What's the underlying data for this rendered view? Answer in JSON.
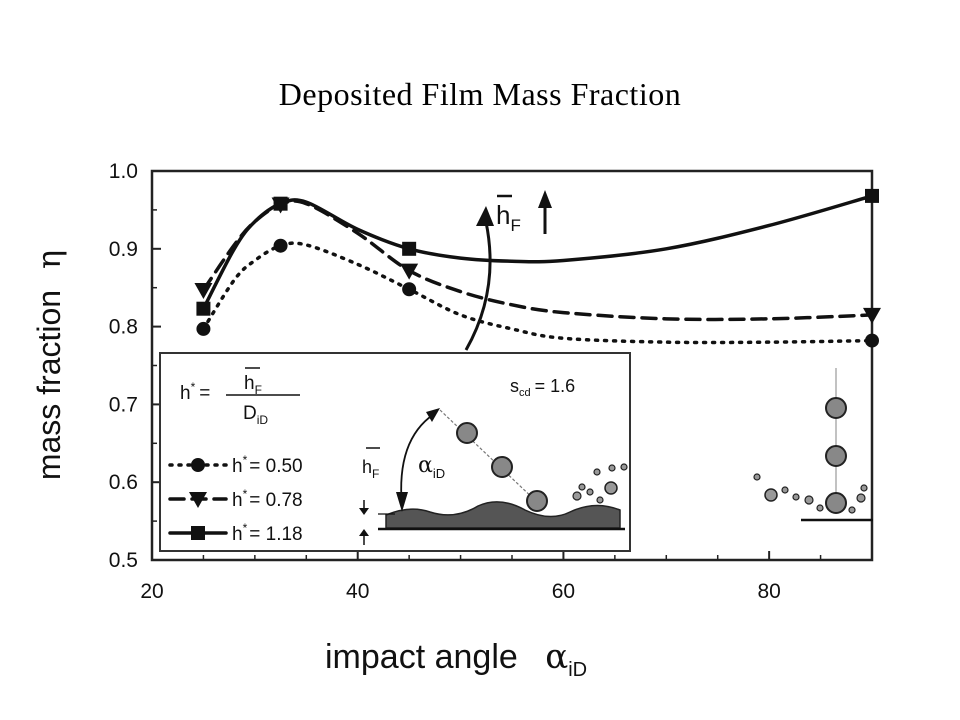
{
  "page_title": "Deposited Film Mass Fraction",
  "chart_data": {
    "type": "line",
    "title": "",
    "xlabel": "impact angle",
    "xlabel_symbol": "α",
    "xlabel_sub": "iD",
    "ylabel": "mass fraction",
    "ylabel_symbol": "η",
    "xlim": [
      20,
      90
    ],
    "ylim": [
      0.5,
      1.0
    ],
    "x_ticks": [
      "20",
      "40",
      "60",
      "80"
    ],
    "y_ticks": [
      "0.5",
      "0.6",
      "0.7",
      "0.8",
      "0.9",
      "1.0"
    ],
    "grid": false,
    "series": [
      {
        "name": "h* = 0.50",
        "legend_h": "h",
        "legend_value": "= 0.50",
        "line_style": "dotted",
        "marker": "circle",
        "markers_x": [
          25,
          32.5,
          45,
          90
        ],
        "markers_y": [
          0.797,
          0.904,
          0.848,
          0.782
        ],
        "x": [
          25,
          28,
          30,
          32.5,
          35,
          40,
          45,
          50,
          55,
          60,
          70,
          80,
          90
        ],
        "y": [
          0.797,
          0.86,
          0.885,
          0.904,
          0.905,
          0.88,
          0.848,
          0.815,
          0.797,
          0.785,
          0.78,
          0.78,
          0.782
        ]
      },
      {
        "name": "h* = 0.78",
        "legend_h": "h",
        "legend_value": "= 0.78",
        "line_style": "dashed",
        "marker": "triangle-down",
        "markers_x": [
          25,
          32.5,
          45,
          90
        ],
        "markers_y": [
          0.847,
          0.957,
          0.872,
          0.815
        ],
        "x": [
          25,
          28,
          30,
          32.5,
          35,
          40,
          45,
          50,
          55,
          60,
          70,
          80,
          90
        ],
        "y": [
          0.847,
          0.905,
          0.935,
          0.957,
          0.958,
          0.92,
          0.872,
          0.845,
          0.828,
          0.818,
          0.81,
          0.81,
          0.815
        ]
      },
      {
        "name": "h* = 1.18",
        "legend_h": "h",
        "legend_value": "= 1.18",
        "line_style": "solid",
        "marker": "square",
        "markers_x": [
          25,
          32.5,
          45,
          90
        ],
        "markers_y": [
          0.823,
          0.958,
          0.9,
          0.968
        ],
        "x": [
          25,
          28,
          30,
          32.5,
          35,
          40,
          45,
          50,
          55,
          60,
          70,
          80,
          90
        ],
        "y": [
          0.823,
          0.9,
          0.935,
          0.958,
          0.96,
          0.925,
          0.9,
          0.888,
          0.884,
          0.885,
          0.9,
          0.93,
          0.968
        ]
      }
    ],
    "annotations": {
      "trend_label": "h",
      "trend_sub": "F",
      "trend_arrow": "up",
      "inset": {
        "formula_lhs": "h",
        "formula_sup": "*",
        "formula_eq": "=",
        "numerator": "h",
        "numerator_sub": "F",
        "denominator": "D",
        "denominator_sub": "iD",
        "s_label": "s",
        "s_sub": "cd",
        "s_value": "= 1.6",
        "height_label": "h",
        "height_sub": "F",
        "angle_symbol": "α",
        "angle_sub": "iD"
      }
    }
  }
}
